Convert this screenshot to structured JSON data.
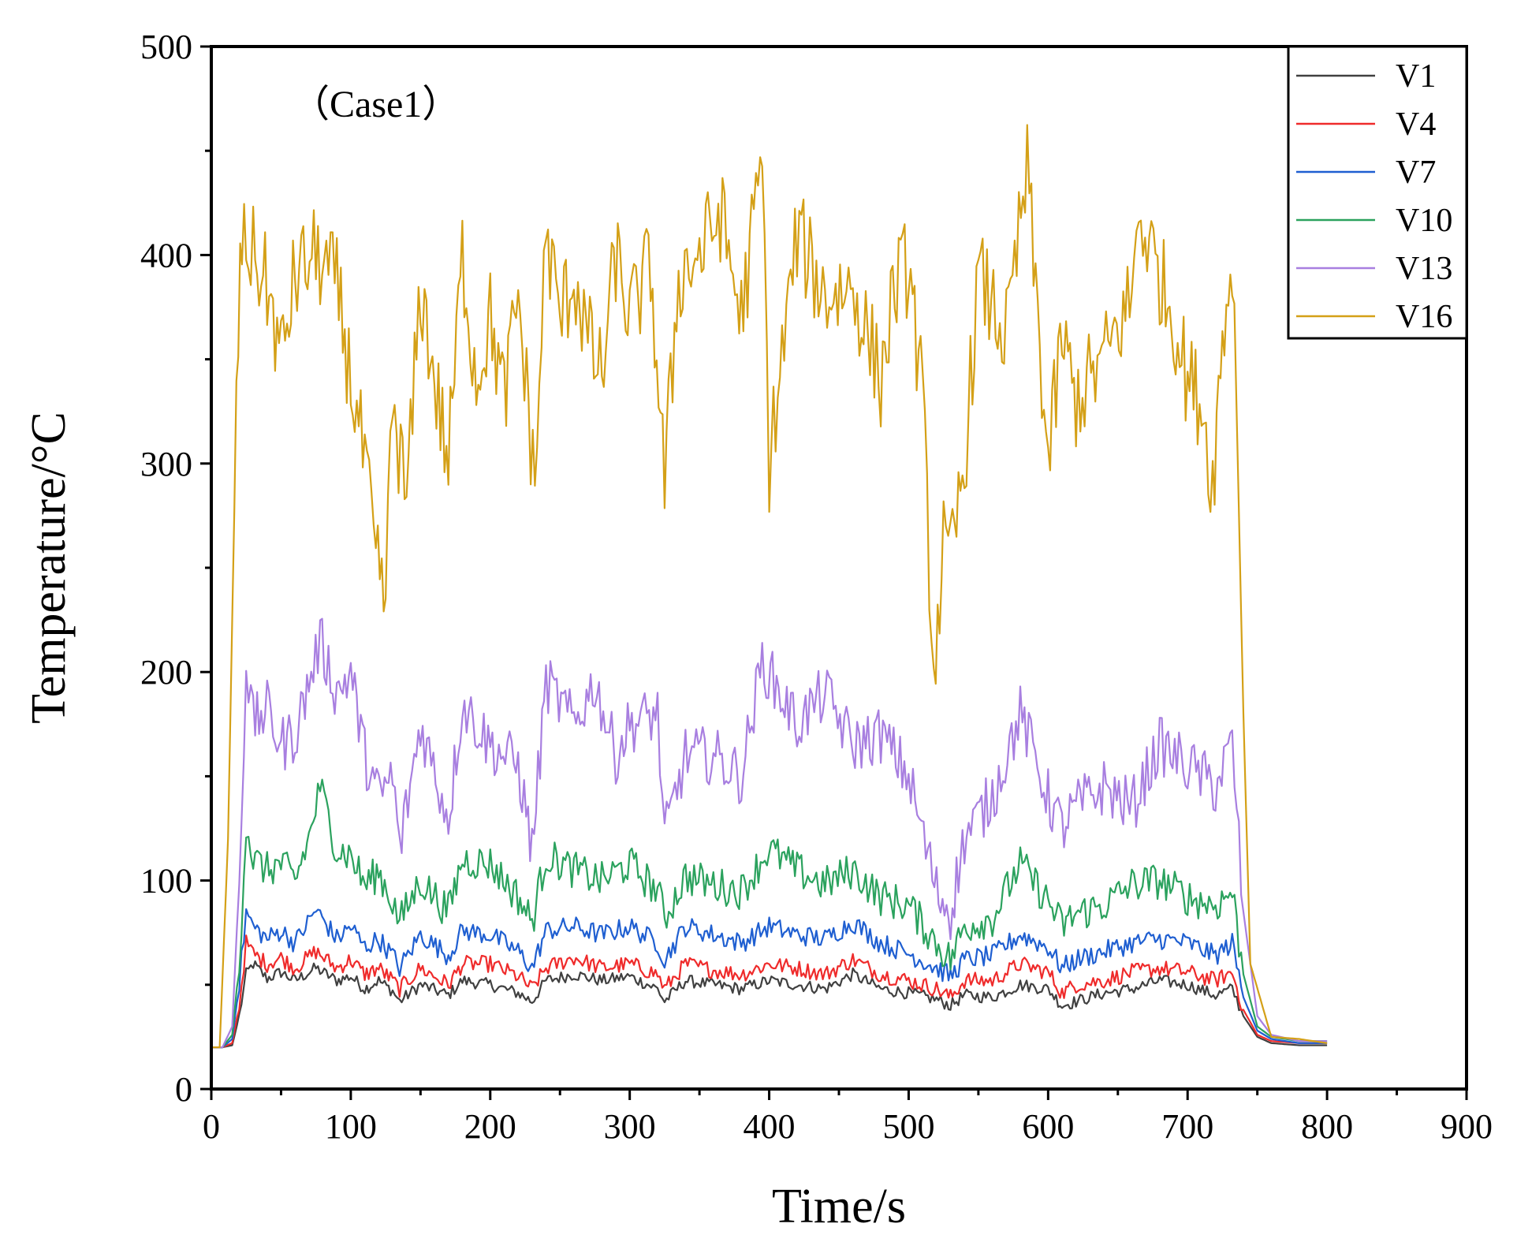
{
  "chart_data": {
    "type": "line",
    "annotation": "（Case1）",
    "xlabel": "Time/s",
    "ylabel": "Temperature/°C",
    "xlim": [
      0,
      900
    ],
    "ylim": [
      0,
      500
    ],
    "x_ticks": [
      0,
      100,
      200,
      300,
      400,
      500,
      600,
      700,
      800,
      900
    ],
    "y_ticks": [
      0,
      100,
      200,
      300,
      400,
      500
    ],
    "x_tick_labels": [
      "0",
      "100",
      "200",
      "300",
      "400",
      "500",
      "600",
      "700",
      "800",
      "900"
    ],
    "y_tick_labels": [
      "0",
      "100",
      "200",
      "300",
      "400",
      "500"
    ],
    "legend_position": "top-right",
    "grid": false,
    "series": [
      {
        "name": "V1",
        "color": "#404040",
        "x": [
          0,
          8,
          15,
          20,
          25,
          30,
          40,
          50,
          60,
          75,
          90,
          100,
          110,
          120,
          130,
          135,
          150,
          170,
          180,
          200,
          220,
          230,
          240,
          260,
          280,
          300,
          320,
          325,
          340,
          360,
          380,
          400,
          420,
          440,
          460,
          480,
          500,
          520,
          530,
          540,
          560,
          580,
          600,
          610,
          620,
          640,
          660,
          680,
          700,
          720,
          732,
          740,
          750,
          760,
          780,
          800
        ],
        "y": [
          20,
          20,
          21,
          35,
          55,
          60,
          53,
          56,
          52,
          58,
          52,
          54,
          48,
          52,
          47,
          42,
          50,
          45,
          52,
          50,
          46,
          42,
          52,
          55,
          52,
          54,
          48,
          42,
          52,
          50,
          48,
          52,
          50,
          48,
          55,
          48,
          46,
          43,
          40,
          45,
          44,
          50,
          48,
          40,
          42,
          46,
          48,
          52,
          50,
          45,
          48,
          35,
          25,
          22,
          21,
          21
        ]
      },
      {
        "name": "V4",
        "color": "#ef2b2b",
        "x": [
          0,
          8,
          15,
          20,
          25,
          30,
          40,
          50,
          60,
          75,
          90,
          100,
          110,
          120,
          130,
          135,
          150,
          170,
          180,
          200,
          220,
          230,
          240,
          260,
          280,
          300,
          320,
          325,
          340,
          360,
          380,
          400,
          420,
          440,
          460,
          480,
          500,
          520,
          530,
          540,
          560,
          580,
          600,
          610,
          620,
          640,
          660,
          680,
          700,
          720,
          732,
          740,
          750,
          760,
          780,
          800
        ],
        "y": [
          20,
          20,
          22,
          40,
          70,
          65,
          60,
          63,
          58,
          66,
          58,
          62,
          55,
          58,
          52,
          48,
          58,
          50,
          60,
          60,
          54,
          48,
          58,
          63,
          58,
          60,
          55,
          48,
          60,
          57,
          55,
          60,
          58,
          55,
          62,
          55,
          52,
          48,
          44,
          52,
          52,
          60,
          56,
          46,
          50,
          52,
          56,
          58,
          56,
          52,
          56,
          38,
          26,
          23,
          22,
          22
        ]
      },
      {
        "name": "V7",
        "color": "#1f5fd1",
        "x": [
          0,
          8,
          15,
          20,
          25,
          30,
          40,
          50,
          60,
          75,
          90,
          100,
          110,
          120,
          130,
          135,
          150,
          170,
          180,
          200,
          220,
          230,
          240,
          260,
          280,
          300,
          320,
          325,
          340,
          360,
          380,
          400,
          420,
          440,
          460,
          480,
          500,
          520,
          530,
          540,
          560,
          580,
          600,
          610,
          620,
          640,
          660,
          680,
          700,
          720,
          732,
          740,
          750,
          760,
          780,
          800
        ],
        "y": [
          20,
          20,
          24,
          50,
          85,
          78,
          72,
          76,
          70,
          86,
          72,
          78,
          68,
          72,
          64,
          58,
          74,
          64,
          76,
          74,
          66,
          58,
          76,
          78,
          74,
          78,
          70,
          62,
          78,
          74,
          70,
          78,
          74,
          72,
          80,
          70,
          65,
          58,
          54,
          62,
          64,
          74,
          68,
          58,
          62,
          66,
          70,
          72,
          70,
          64,
          70,
          44,
          28,
          24,
          22,
          22
        ]
      },
      {
        "name": "V10",
        "color": "#2ba25e",
        "x": [
          0,
          8,
          15,
          20,
          25,
          30,
          40,
          50,
          60,
          70,
          78,
          90,
          100,
          110,
          120,
          130,
          135,
          150,
          170,
          180,
          200,
          220,
          230,
          240,
          260,
          280,
          300,
          320,
          325,
          340,
          360,
          380,
          400,
          420,
          440,
          460,
          480,
          500,
          520,
          530,
          540,
          560,
          580,
          600,
          610,
          620,
          640,
          660,
          680,
          700,
          720,
          732,
          740,
          750,
          760,
          780,
          800
        ],
        "y": [
          20,
          20,
          26,
          60,
          128,
          110,
          105,
          108,
          100,
          120,
          145,
          115,
          112,
          98,
          104,
          90,
          80,
          100,
          85,
          110,
          108,
          92,
          80,
          112,
          105,
          100,
          108,
          95,
          82,
          102,
          98,
          95,
          115,
          105,
          98,
          105,
          92,
          88,
          70,
          62,
          78,
          82,
          108,
          90,
          78,
          84,
          88,
          98,
          100,
          92,
          88,
          95,
          55,
          30,
          25,
          23,
          23
        ]
      },
      {
        "name": "V13",
        "color": "#a87fe0",
        "x": [
          0,
          8,
          15,
          20,
          25,
          30,
          40,
          50,
          60,
          70,
          78,
          90,
          100,
          110,
          120,
          130,
          135,
          150,
          170,
          180,
          200,
          220,
          230,
          240,
          260,
          275,
          290,
          300,
          320,
          325,
          340,
          360,
          380,
          395,
          420,
          440,
          460,
          480,
          500,
          520,
          530,
          540,
          560,
          580,
          600,
          610,
          620,
          640,
          660,
          680,
          700,
          720,
          732,
          740,
          750,
          760,
          780,
          800
        ],
        "y": [
          20,
          20,
          30,
          100,
          205,
          175,
          182,
          165,
          170,
          195,
          215,
          190,
          200,
          160,
          140,
          150,
          115,
          175,
          130,
          185,
          165,
          155,
          115,
          195,
          175,
          195,
          160,
          175,
          180,
          120,
          160,
          160,
          150,
          205,
          175,
          190,
          165,
          170,
          150,
          95,
          85,
          120,
          140,
          180,
          140,
          125,
          135,
          145,
          135,
          165,
          155,
          145,
          165,
          85,
          35,
          26,
          23,
          23
        ]
      },
      {
        "name": "V16",
        "color": "#d4a017",
        "x": [
          0,
          6,
          12,
          18,
          22,
          25,
          30,
          40,
          50,
          60,
          75,
          90,
          100,
          110,
          118,
          125,
          130,
          140,
          150,
          160,
          170,
          180,
          190,
          200,
          210,
          220,
          232,
          240,
          250,
          260,
          270,
          280,
          290,
          300,
          315,
          325,
          335,
          350,
          365,
          380,
          395,
          400,
          420,
          440,
          460,
          480,
          490,
          500,
          510,
          518,
          525,
          530,
          540,
          550,
          570,
          585,
          600,
          610,
          620,
          640,
          660,
          665,
          680,
          690,
          700,
          710,
          718,
          725,
          732,
          735,
          740,
          745,
          760,
          780,
          800
        ],
        "y": [
          20,
          20,
          120,
          330,
          410,
          405,
          400,
          385,
          350,
          390,
          400,
          385,
          340,
          300,
          250,
          235,
          330,
          280,
          385,
          340,
          300,
          400,
          340,
          370,
          330,
          380,
          290,
          410,
          370,
          390,
          360,
          340,
          400,
          370,
          395,
          290,
          390,
          400,
          420,
          370,
          445,
          300,
          410,
          380,
          385,
          340,
          385,
          395,
          330,
          200,
          260,
          250,
          300,
          390,
          360,
          440,
          300,
          360,
          330,
          350,
          380,
          420,
          390,
          370,
          340,
          330,
          290,
          360,
          400,
          330,
          180,
          60,
          25,
          24,
          22
        ]
      }
    ]
  }
}
